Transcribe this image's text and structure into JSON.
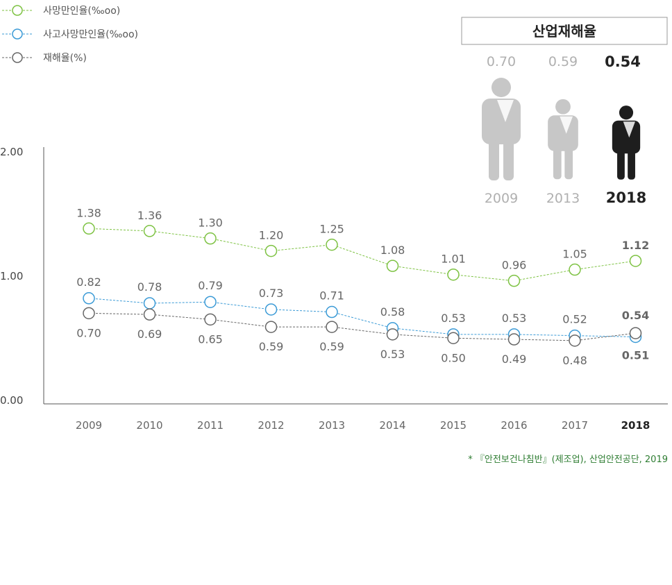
{
  "chart_data": {
    "type": "line",
    "x": [
      "2009",
      "2010",
      "2011",
      "2012",
      "2013",
      "2014",
      "2015",
      "2016",
      "2017",
      "2018"
    ],
    "ylim": [
      0,
      2
    ],
    "yticks": [
      "0.00",
      "1.00",
      "2.00"
    ],
    "grid": false,
    "legend_position": "top-left",
    "series": [
      {
        "name": "사망만인율(‰oo)",
        "color": "#7dc242",
        "values": [
          1.38,
          1.36,
          1.3,
          1.2,
          1.25,
          1.08,
          1.01,
          0.96,
          1.05,
          1.12
        ],
        "labels": [
          "1.38",
          "1.36",
          "1.30",
          "1.20",
          "1.25",
          "1.08",
          "1.01",
          "0.96",
          "1.05",
          "1.12"
        ]
      },
      {
        "name": "사고사망만인율(‰oo)",
        "color": "#3a9ad6",
        "values": [
          0.82,
          0.78,
          0.79,
          0.73,
          0.71,
          0.58,
          0.53,
          0.53,
          0.52,
          0.51
        ],
        "labels": [
          "0.82",
          "0.78",
          "0.79",
          "0.73",
          "0.71",
          "0.58",
          "0.53",
          "0.53",
          "0.52",
          "0.51"
        ]
      },
      {
        "name": "재해율(%)",
        "color": "#666666",
        "values": [
          0.7,
          0.69,
          0.65,
          0.59,
          0.59,
          0.53,
          0.5,
          0.49,
          0.48,
          0.54
        ],
        "labels": [
          "0.70",
          "0.69",
          "0.65",
          "0.59",
          "0.59",
          "0.53",
          "0.50",
          "0.49",
          "0.48",
          "0.54"
        ]
      }
    ]
  },
  "inset": {
    "title": "산업재해율",
    "items": [
      {
        "year": "2009",
        "value": "0.70",
        "color": "#c7c7c7"
      },
      {
        "year": "2013",
        "value": "0.59",
        "color": "#c7c7c7"
      },
      {
        "year": "2018",
        "value": "0.54",
        "color": "#1e1e1e"
      }
    ]
  },
  "source": "* 『안전보건나침반』(제조업), 산업안전공단, 2019"
}
